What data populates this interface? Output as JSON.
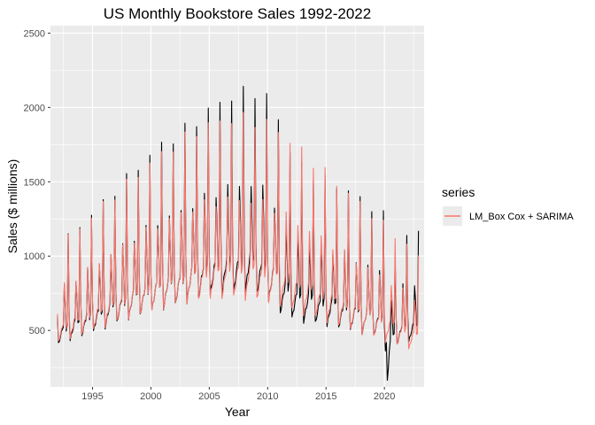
{
  "chart_data": {
    "type": "line",
    "title": "US Monthly Bookstore Sales 1992-2022",
    "xlabel": "Year",
    "ylabel": "Sales ($ millions)",
    "xlim": [
      1991.4,
      2023.4
    ],
    "ylim": [
      120,
      2550
    ],
    "x_ticks": [
      1995,
      2000,
      2005,
      2010,
      2015,
      2020
    ],
    "y_ticks": [
      500,
      1000,
      1500,
      2000,
      2500
    ],
    "grid": true,
    "legend": {
      "title": "series",
      "placement": "right",
      "entries": [
        "LM_Box Cox + SARIMA"
      ]
    },
    "colors": {
      "actual": "#000000",
      "fitted": "#f8766d",
      "panel": "#ebebeb",
      "grid": "#ffffff"
    },
    "start_year": 1992,
    "end_year": 2022,
    "seasonal_pattern": [
      0.95,
      0.66,
      0.7,
      0.74,
      0.78,
      0.82,
      0.86,
      1.28,
      1.08,
      0.82,
      0.86,
      1.82
    ],
    "yearly_base_actual": [
      {
        "year": 1992,
        "base": 620
      },
      {
        "year": 1993,
        "base": 660
      },
      {
        "year": 1994,
        "base": 705
      },
      {
        "year": 1995,
        "base": 745
      },
      {
        "year": 1996,
        "base": 790
      },
      {
        "year": 1997,
        "base": 835
      },
      {
        "year": 1998,
        "base": 880
      },
      {
        "year": 1999,
        "base": 920
      },
      {
        "year": 2000,
        "base": 960
      },
      {
        "year": 2001,
        "base": 985
      },
      {
        "year": 2002,
        "base": 1015
      },
      {
        "year": 2003,
        "base": 1050
      },
      {
        "year": 2004,
        "base": 1085
      },
      {
        "year": 2005,
        "base": 1115
      },
      {
        "year": 2006,
        "base": 1140
      },
      {
        "year": 2007,
        "base": 1150
      },
      {
        "year": 2008,
        "base": 1160
      },
      {
        "year": 2009,
        "base": 1130
      },
      {
        "year": 2010,
        "base": 1060
      },
      {
        "year": 2011,
        "base": 940
      },
      {
        "year": 2012,
        "base": 880
      },
      {
        "year": 2013,
        "base": 850
      },
      {
        "year": 2014,
        "base": 830
      },
      {
        "year": 2015,
        "base": 810
      },
      {
        "year": 2016,
        "base": 790
      },
      {
        "year": 2017,
        "base": 760
      },
      {
        "year": 2018,
        "base": 730
      },
      {
        "year": 2019,
        "base": 700
      },
      {
        "year": 2020,
        "base": 560
      },
      {
        "year": 2021,
        "base": 620
      },
      {
        "year": 2022,
        "base": 640
      }
    ],
    "yearly_base_fitted": [
      {
        "year": 1992,
        "base": 640
      },
      {
        "year": 1993,
        "base": 680
      },
      {
        "year": 1994,
        "base": 720
      },
      {
        "year": 1995,
        "base": 765
      },
      {
        "year": 1996,
        "base": 805
      },
      {
        "year": 1997,
        "base": 845
      },
      {
        "year": 1998,
        "base": 885
      },
      {
        "year": 1999,
        "base": 925
      },
      {
        "year": 2000,
        "base": 960
      },
      {
        "year": 2001,
        "base": 990
      },
      {
        "year": 2002,
        "base": 1020
      },
      {
        "year": 2003,
        "base": 1050
      },
      {
        "year": 2004,
        "base": 1070
      },
      {
        "year": 2005,
        "base": 1085
      },
      {
        "year": 2006,
        "base": 1095
      },
      {
        "year": 2007,
        "base": 1095
      },
      {
        "year": 2008,
        "base": 1090
      },
      {
        "year": 2009,
        "base": 1075
      },
      {
        "year": 2010,
        "base": 1050
      },
      {
        "year": 2011,
        "base": 1010
      },
      {
        "year": 2012,
        "base": 970
      },
      {
        "year": 2013,
        "base": 930
      },
      {
        "year": 2014,
        "base": 890
      },
      {
        "year": 2015,
        "base": 850
      },
      {
        "year": 2016,
        "base": 810
      },
      {
        "year": 2017,
        "base": 770
      },
      {
        "year": 2018,
        "base": 730
      },
      {
        "year": 2019,
        "base": 690
      },
      {
        "year": 2020,
        "base": 650
      },
      {
        "year": 2021,
        "base": 610
      },
      {
        "year": 2022,
        "base": 570
      }
    ],
    "anomalies": [
      {
        "year": 2020,
        "month": 3,
        "value": 420
      },
      {
        "year": 2020,
        "month": 4,
        "value": 165
      },
      {
        "year": 2020,
        "month": 5,
        "value": 240
      },
      {
        "year": 2020,
        "month": 6,
        "value": 360
      },
      {
        "year": 2020,
        "month": 7,
        "value": 430
      }
    ],
    "series": [
      {
        "key": "actual"
      },
      {
        "key": "fitted",
        "name": "LM_Box Cox + SARIMA"
      }
    ]
  }
}
